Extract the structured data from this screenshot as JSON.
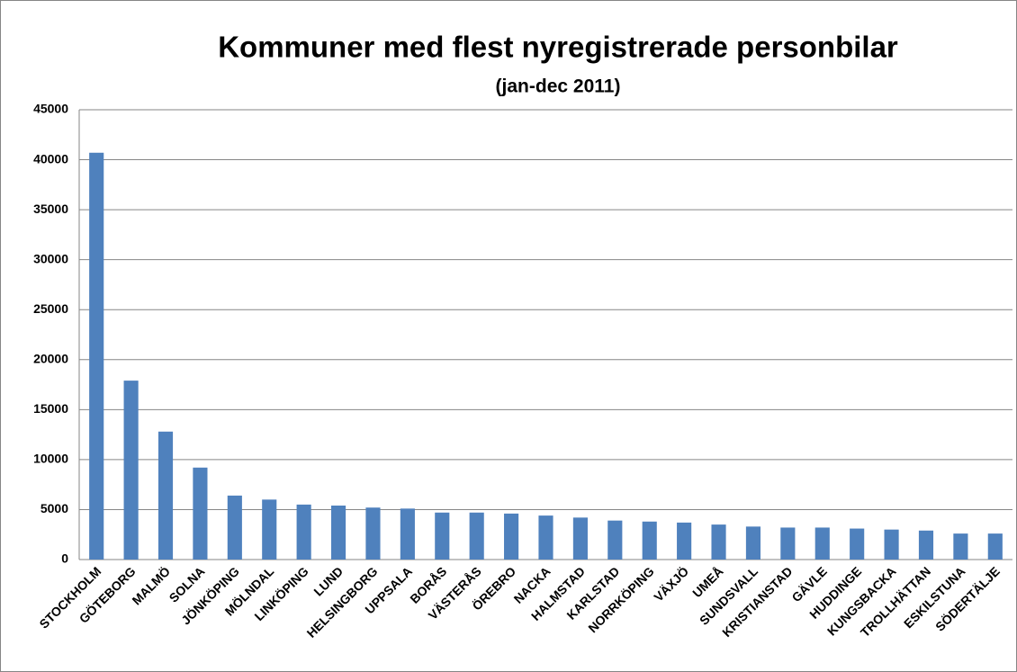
{
  "chart_data": {
    "type": "bar",
    "title": "Kommuner med flest nyregistrerade personbilar",
    "subtitle": "(jan-dec 2011)",
    "categories": [
      "STOCKHOLM",
      "GÖTEBORG",
      "MALMÖ",
      "SOLNA",
      "JÖNKÖPING",
      "MÖLNDAL",
      "LINKÖPING",
      "LUND",
      "HELSINGBORG",
      "UPPSALA",
      "BORÅS",
      "VÄSTERÅS",
      "ÖREBRO",
      "NACKA",
      "HALMSTAD",
      "KARLSTAD",
      "NORRKÖPING",
      "VÄXJÖ",
      "UMEÅ",
      "SUNDSVALL",
      "KRISTIANSTAD",
      "GÄVLE",
      "HUDDINGE",
      "KUNGSBACKA",
      "TROLLHÄTTAN",
      "ESKILSTUNA",
      "SÖDERTÄLJE"
    ],
    "values": [
      40700,
      17900,
      12800,
      9200,
      6400,
      6000,
      5500,
      5400,
      5200,
      5100,
      4700,
      4700,
      4600,
      4400,
      4200,
      3900,
      3800,
      3700,
      3500,
      3300,
      3200,
      3200,
      3100,
      3000,
      2900,
      2600,
      2600
    ],
    "color": "#4f81bd",
    "ylim": [
      0,
      45000
    ],
    "yticks": [
      0,
      5000,
      10000,
      15000,
      20000,
      25000,
      30000,
      35000,
      40000,
      45000
    ],
    "grid": true
  }
}
